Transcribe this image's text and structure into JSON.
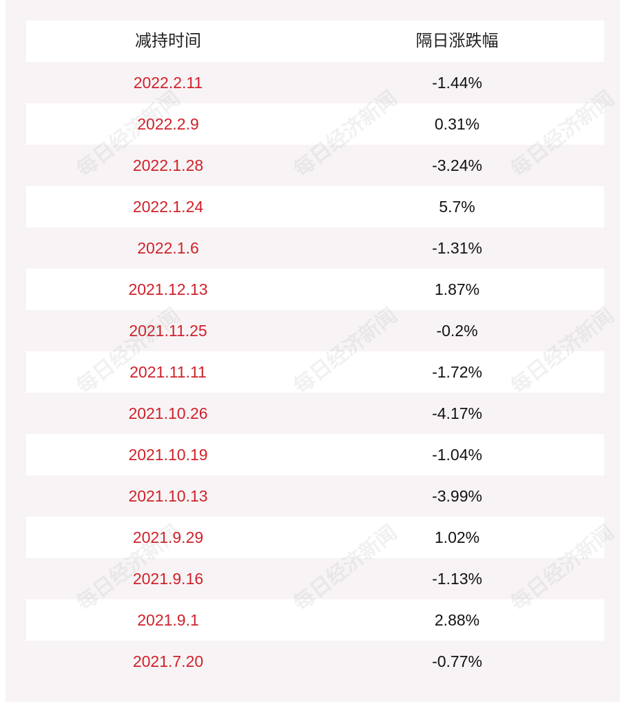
{
  "table": {
    "headers": {
      "date": "减持时间",
      "change": "隔日涨跌幅"
    },
    "rows": [
      {
        "date": "2022.2.11",
        "change": "-1.44%"
      },
      {
        "date": "2022.2.9",
        "change": "0.31%"
      },
      {
        "date": "2022.1.28",
        "change": "-3.24%"
      },
      {
        "date": "2022.1.24",
        "change": "5.7%"
      },
      {
        "date": "2022.1.6",
        "change": "-1.31%"
      },
      {
        "date": "2021.12.13",
        "change": "1.87%"
      },
      {
        "date": "2021.11.25",
        "change": "-0.2%"
      },
      {
        "date": "2021.11.11",
        "change": "-1.72%"
      },
      {
        "date": "2021.10.26",
        "change": "-4.17%"
      },
      {
        "date": "2021.10.19",
        "change": "-1.04%"
      },
      {
        "date": "2021.10.13",
        "change": "-3.99%"
      },
      {
        "date": "2021.9.29",
        "change": "1.02%"
      },
      {
        "date": "2021.9.16",
        "change": "-1.13%"
      },
      {
        "date": "2021.9.1",
        "change": "2.88%"
      },
      {
        "date": "2021.7.20",
        "change": "-0.77%"
      }
    ]
  },
  "watermark": {
    "text": "每日经济新闻"
  },
  "colors": {
    "date_text": "#d0212a",
    "value_text": "#111111",
    "row_tint": "#f8f4f5"
  }
}
